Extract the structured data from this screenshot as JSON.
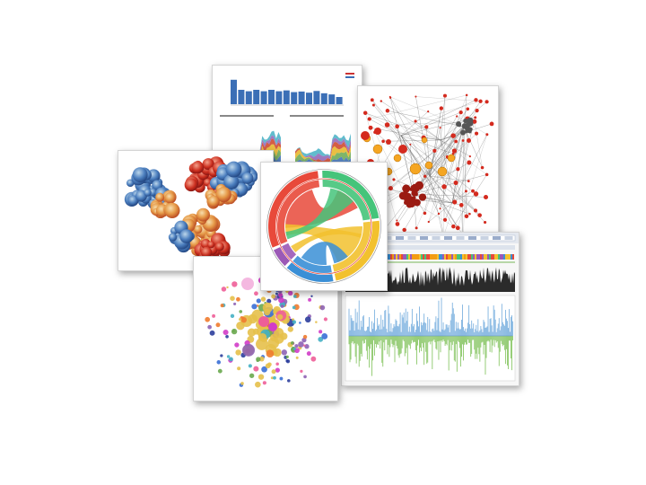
{
  "collage": {
    "cards": [
      {
        "id": "dashboard",
        "kind": "bar and area charts panel"
      },
      {
        "id": "network",
        "kind": "node-link network graph"
      },
      {
        "id": "protein",
        "kind": "protein surface rendering"
      },
      {
        "id": "genome",
        "kind": "genome browser track view"
      },
      {
        "id": "cluster",
        "kind": "scatter cluster graph"
      },
      {
        "id": "chord",
        "kind": "circular chord diagram"
      }
    ]
  },
  "colors": {
    "bar_blue": "#3b6fb6",
    "network_red": "#d42a1e",
    "network_orange": "#f5a623",
    "chord_red": "#e8493a",
    "chord_green": "#45c47a",
    "chord_yellow": "#f2c12e",
    "chord_blue": "#3a8fd6",
    "track_blue": "#7fb3e0",
    "track_green": "#8cc86a"
  }
}
